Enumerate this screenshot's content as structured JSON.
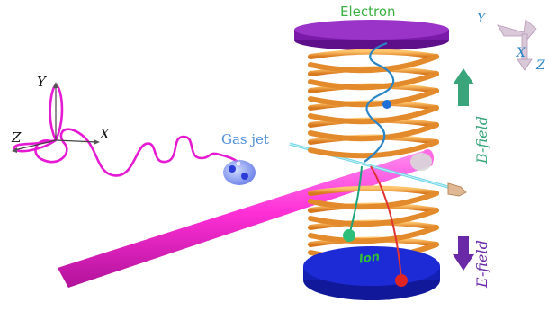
{
  "labels": {
    "electron": "Electron",
    "gas_jet": "Gas jet",
    "ion": "Ion",
    "b_field": "B-field",
    "e_field": "E-field"
  },
  "axes": {
    "lab": {
      "x": "X",
      "y": "Y",
      "z": "Z"
    },
    "polarization": {
      "x": "X",
      "y": "Y",
      "z": "Z"
    }
  },
  "colors": {
    "electron_text": "#3cb043",
    "gas_jet_text": "#4f8fd8",
    "b_field": "#3aa57a",
    "e_field": "#6a2aa8",
    "laser_beam": "#ff2fd6",
    "helix": "#f2a23c",
    "electron_detector": "#8a23b8",
    "ion_detector": "#1d2bd6",
    "ion_text": "#2fbf3a",
    "trajectory": "#e61ad2",
    "electron_path": "#2a85c8",
    "ion_path_green": "#1fa37a",
    "ion_path_red": "#e23232"
  }
}
